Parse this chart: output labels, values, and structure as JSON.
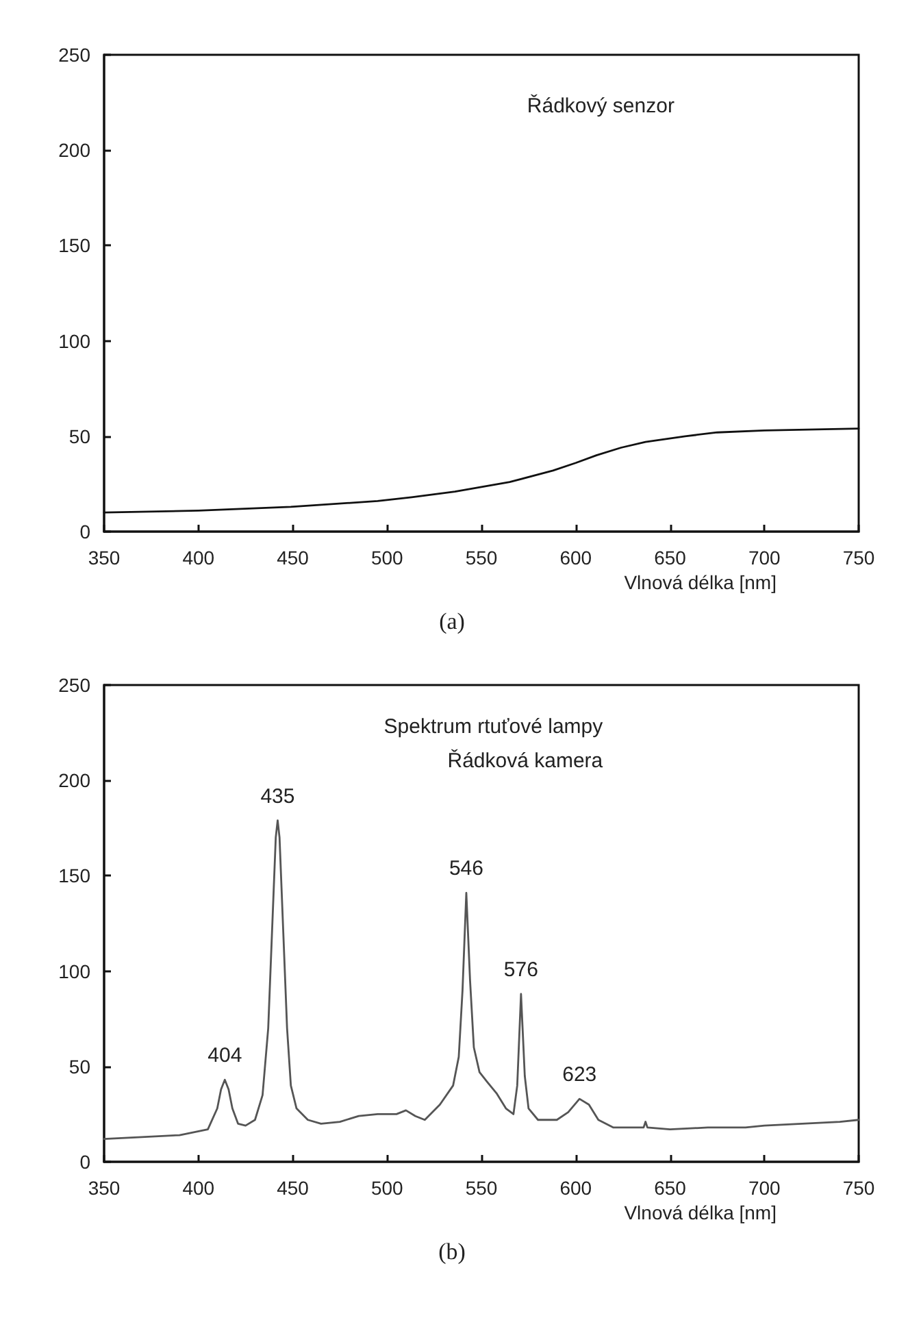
{
  "chart_data": [
    {
      "type": "line",
      "title": "Řádkový senzor",
      "xlabel": "Vlnová délka [nm]",
      "annotations": [
        "(a)"
      ],
      "series": [
        {
          "color": "#111111",
          "x": [
            350,
            400,
            449,
            495,
            513,
            536,
            565,
            588,
            600,
            611,
            624,
            637,
            658,
            675,
            700,
            750
          ],
          "values": [
            10,
            11,
            13,
            16,
            18,
            21,
            26,
            32,
            36,
            40,
            44,
            47,
            50,
            52,
            53,
            54
          ]
        }
      ],
      "xlim": [
        350,
        750
      ],
      "xticks": [
        350,
        400,
        450,
        500,
        550,
        600,
        650,
        700,
        750
      ],
      "ylim": [
        0,
        250
      ],
      "yticks": [
        0,
        50,
        100,
        150,
        200,
        250
      ],
      "grid": false,
      "marker": "none",
      "line_style": "solid"
    },
    {
      "type": "line",
      "title": "Spektrum rtuťové lampy",
      "subtitle": "Řádková kamera",
      "xlabel": "Vlnová délka [nm]",
      "annotations": [
        {
          "text": "404",
          "x": 414,
          "y": 43
        },
        {
          "text": "435",
          "x": 442,
          "y": 179
        },
        {
          "text": "546",
          "x": 542,
          "y": 141
        },
        {
          "text": "576",
          "x": 571,
          "y": 88
        },
        {
          "text": "623",
          "x": 602,
          "y": 33
        },
        "(b)"
      ],
      "series": [
        {
          "color": "#555555",
          "x": [
            350,
            370,
            390,
            405,
            410,
            412,
            414,
            416,
            418,
            421,
            425,
            430,
            434,
            437,
            439,
            441,
            442,
            443,
            445,
            447,
            449,
            452,
            458,
            465,
            475,
            485,
            495,
            505,
            510,
            515,
            520,
            528,
            535,
            538,
            540,
            542,
            544,
            546,
            549,
            553,
            558,
            563,
            567,
            569,
            571,
            573,
            575,
            580,
            590,
            596,
            602,
            607,
            612,
            620,
            630,
            636,
            637,
            638,
            650,
            670,
            690,
            700,
            720,
            740,
            750
          ],
          "values": [
            12,
            13,
            14,
            17,
            28,
            38,
            43,
            38,
            28,
            20,
            19,
            22,
            35,
            70,
            120,
            170,
            179,
            170,
            120,
            70,
            40,
            28,
            22,
            20,
            21,
            24,
            25,
            25,
            27,
            24,
            22,
            30,
            40,
            55,
            90,
            141,
            95,
            60,
            47,
            42,
            36,
            28,
            25,
            40,
            88,
            45,
            28,
            22,
            22,
            26,
            33,
            30,
            22,
            18,
            18,
            18,
            21,
            18,
            17,
            18,
            18,
            19,
            20,
            21,
            22
          ]
        }
      ],
      "xlim": [
        350,
        750
      ],
      "xticks": [
        350,
        400,
        450,
        500,
        550,
        600,
        650,
        700,
        750
      ],
      "ylim": [
        0,
        250
      ],
      "yticks": [
        0,
        50,
        100,
        150,
        200,
        250
      ],
      "grid": false,
      "marker": "none",
      "line_style": "solid"
    }
  ]
}
